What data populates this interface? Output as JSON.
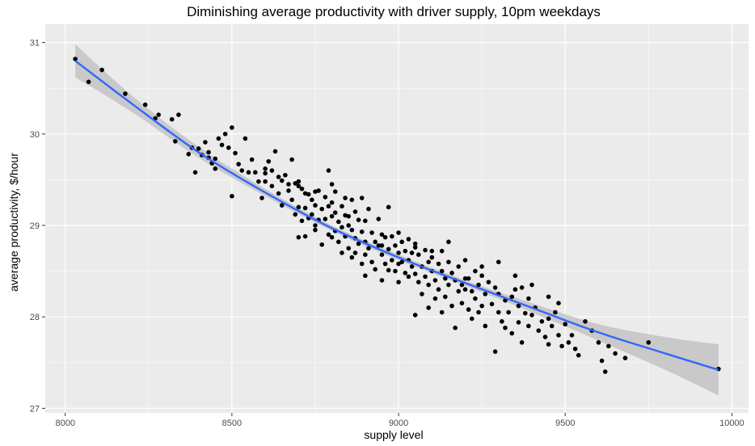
{
  "chart_data": {
    "type": "scatter",
    "title": "Diminishing average productivity with driver supply, 10pm weekdays",
    "xlabel": "supply level",
    "ylabel": "average productivity, $/hour",
    "xlim": [
      7940,
      10050
    ],
    "ylim": [
      26.95,
      31.2
    ],
    "xticks": [
      8000,
      8500,
      9000,
      9500,
      10000
    ],
    "yticks": [
      27,
      28,
      29,
      30,
      31
    ],
    "grid": true,
    "colors": {
      "panel": "#ebebeb",
      "grid_major": "#ffffff",
      "point": "#000000",
      "fit_line": "#3366ff",
      "confidence_band": "#bdbdbd"
    },
    "trend": {
      "method": "smooth",
      "x": [
        8030,
        8200,
        8400,
        8600,
        8800,
        9000,
        9200,
        9400,
        9600,
        9800,
        9960
      ],
      "y": [
        30.8,
        30.33,
        29.8,
        29.36,
        28.97,
        28.65,
        28.37,
        28.1,
        27.83,
        27.6,
        27.42
      ],
      "lower": [
        30.62,
        30.24,
        29.74,
        29.32,
        28.94,
        28.62,
        28.34,
        28.05,
        27.74,
        27.42,
        27.14
      ],
      "upper": [
        30.98,
        30.42,
        29.86,
        29.4,
        29.0,
        28.68,
        28.4,
        28.15,
        27.92,
        27.78,
        27.7
      ]
    },
    "points": [
      [
        8030,
        30.82
      ],
      [
        8070,
        30.57
      ],
      [
        8110,
        30.7
      ],
      [
        8180,
        30.44
      ],
      [
        8240,
        30.32
      ],
      [
        8270,
        30.17
      ],
      [
        8280,
        30.21
      ],
      [
        8320,
        30.16
      ],
      [
        8340,
        30.21
      ],
      [
        8330,
        29.92
      ],
      [
        8370,
        29.78
      ],
      [
        8380,
        29.85
      ],
      [
        8400,
        29.84
      ],
      [
        8390,
        29.58
      ],
      [
        8410,
        29.77
      ],
      [
        8420,
        29.91
      ],
      [
        8430,
        29.8
      ],
      [
        8430,
        29.74
      ],
      [
        8440,
        29.68
      ],
      [
        8450,
        29.62
      ],
      [
        8450,
        29.73
      ],
      [
        8460,
        29.95
      ],
      [
        8470,
        29.88
      ],
      [
        8480,
        30.0
      ],
      [
        8490,
        29.85
      ],
      [
        8500,
        30.07
      ],
      [
        8510,
        29.79
      ],
      [
        8520,
        29.67
      ],
      [
        8530,
        29.6
      ],
      [
        8540,
        29.95
      ],
      [
        8550,
        29.58
      ],
      [
        8500,
        29.32
      ],
      [
        8560,
        29.72
      ],
      [
        8570,
        29.58
      ],
      [
        8580,
        29.48
      ],
      [
        8590,
        29.3
      ],
      [
        8600,
        29.57
      ],
      [
        8600,
        29.48
      ],
      [
        8610,
        29.7
      ],
      [
        8620,
        29.43
      ],
      [
        8620,
        29.6
      ],
      [
        8630,
        29.81
      ],
      [
        8640,
        29.53
      ],
      [
        8640,
        29.35
      ],
      [
        8650,
        29.49
      ],
      [
        8650,
        29.22
      ],
      [
        8660,
        29.55
      ],
      [
        8670,
        29.38
      ],
      [
        8670,
        29.45
      ],
      [
        8680,
        29.72
      ],
      [
        8680,
        29.28
      ],
      [
        8690,
        29.46
      ],
      [
        8690,
        29.12
      ],
      [
        8700,
        29.43
      ],
      [
        8700,
        29.2
      ],
      [
        8700,
        28.87
      ],
      [
        8710,
        29.4
      ],
      [
        8710,
        29.05
      ],
      [
        8720,
        29.35
      ],
      [
        8720,
        29.19
      ],
      [
        8720,
        28.88
      ],
      [
        8730,
        29.34
      ],
      [
        8730,
        29.08
      ],
      [
        8740,
        29.28
      ],
      [
        8740,
        29.12
      ],
      [
        8750,
        29.37
      ],
      [
        8750,
        29.22
      ],
      [
        8750,
        28.95
      ],
      [
        8760,
        29.38
      ],
      [
        8760,
        29.06
      ],
      [
        8770,
        29.18
      ],
      [
        8770,
        28.79
      ],
      [
        8780,
        29.31
      ],
      [
        8780,
        29.07
      ],
      [
        8790,
        29.6
      ],
      [
        8790,
        29.21
      ],
      [
        8790,
        28.9
      ],
      [
        8800,
        29.25
      ],
      [
        8800,
        29.1
      ],
      [
        8800,
        28.87
      ],
      [
        8810,
        29.37
      ],
      [
        8810,
        29.14
      ],
      [
        8810,
        28.94
      ],
      [
        8820,
        29.04
      ],
      [
        8820,
        28.82
      ],
      [
        8830,
        29.21
      ],
      [
        8830,
        28.98
      ],
      [
        8830,
        28.7
      ],
      [
        8840,
        29.11
      ],
      [
        8840,
        28.88
      ],
      [
        8840,
        29.3
      ],
      [
        8850,
        29.0
      ],
      [
        8850,
        28.75
      ],
      [
        8860,
        29.28
      ],
      [
        8860,
        28.95
      ],
      [
        8860,
        28.65
      ],
      [
        8870,
        29.15
      ],
      [
        8870,
        28.86
      ],
      [
        8870,
        28.7
      ],
      [
        8880,
        29.06
      ],
      [
        8880,
        28.8
      ],
      [
        8890,
        29.3
      ],
      [
        8890,
        28.93
      ],
      [
        8890,
        28.58
      ],
      [
        8900,
        29.05
      ],
      [
        8900,
        28.82
      ],
      [
        8900,
        28.68
      ],
      [
        8910,
        29.18
      ],
      [
        8910,
        28.75
      ],
      [
        8920,
        28.92
      ],
      [
        8920,
        28.6
      ],
      [
        8930,
        28.82
      ],
      [
        8930,
        28.52
      ],
      [
        8940,
        29.07
      ],
      [
        8940,
        28.78
      ],
      [
        8950,
        28.9
      ],
      [
        8950,
        28.68
      ],
      [
        8950,
        28.4
      ],
      [
        8960,
        28.87
      ],
      [
        8960,
        28.58
      ],
      [
        8970,
        29.2
      ],
      [
        8970,
        28.74
      ],
      [
        8970,
        28.51
      ],
      [
        8980,
        28.88
      ],
      [
        8980,
        28.62
      ],
      [
        8990,
        28.78
      ],
      [
        8990,
        28.5
      ],
      [
        9000,
        28.92
      ],
      [
        9000,
        28.7
      ],
      [
        9000,
        28.58
      ],
      [
        9000,
        28.38
      ],
      [
        9010,
        28.82
      ],
      [
        9010,
        28.6
      ],
      [
        9020,
        28.72
      ],
      [
        9020,
        28.48
      ],
      [
        9030,
        28.85
      ],
      [
        9030,
        28.62
      ],
      [
        9030,
        28.44
      ],
      [
        9040,
        28.7
      ],
      [
        9040,
        28.55
      ],
      [
        9050,
        28.76
      ],
      [
        9050,
        28.47
      ],
      [
        9050,
        28.02
      ],
      [
        9060,
        28.68
      ],
      [
        9060,
        28.38
      ],
      [
        9070,
        28.55
      ],
      [
        9070,
        28.25
      ],
      [
        9080,
        28.73
      ],
      [
        9080,
        28.44
      ],
      [
        9090,
        28.6
      ],
      [
        9090,
        28.35
      ],
      [
        9090,
        28.1
      ],
      [
        9100,
        28.65
      ],
      [
        9100,
        28.5
      ],
      [
        9110,
        28.4
      ],
      [
        9110,
        28.2
      ],
      [
        9120,
        28.58
      ],
      [
        9120,
        28.3
      ],
      [
        9130,
        28.72
      ],
      [
        9130,
        28.5
      ],
      [
        9130,
        28.05
      ],
      [
        9140,
        28.42
      ],
      [
        9140,
        28.22
      ],
      [
        9150,
        28.6
      ],
      [
        9150,
        28.35
      ],
      [
        9160,
        28.48
      ],
      [
        9160,
        28.12
      ],
      [
        9170,
        28.4
      ],
      [
        9170,
        27.88
      ],
      [
        9180,
        28.55
      ],
      [
        9180,
        28.28
      ],
      [
        9190,
        28.35
      ],
      [
        9190,
        28.15
      ],
      [
        9200,
        28.62
      ],
      [
        9200,
        28.3
      ],
      [
        9210,
        28.42
      ],
      [
        9210,
        28.08
      ],
      [
        9220,
        28.28
      ],
      [
        9220,
        27.98
      ],
      [
        9230,
        28.5
      ],
      [
        9230,
        28.2
      ],
      [
        9240,
        28.35
      ],
      [
        9240,
        28.05
      ],
      [
        9250,
        28.45
      ],
      [
        9250,
        28.12
      ],
      [
        9260,
        28.25
      ],
      [
        9260,
        27.9
      ],
      [
        9270,
        28.38
      ],
      [
        9280,
        28.14
      ],
      [
        9290,
        28.32
      ],
      [
        9290,
        27.62
      ],
      [
        9300,
        28.05
      ],
      [
        9300,
        28.25
      ],
      [
        9310,
        27.95
      ],
      [
        9320,
        28.18
      ],
      [
        9320,
        27.88
      ],
      [
        9330,
        28.05
      ],
      [
        9340,
        28.22
      ],
      [
        9340,
        27.82
      ],
      [
        9350,
        28.45
      ],
      [
        9360,
        28.12
      ],
      [
        9360,
        27.94
      ],
      [
        9370,
        28.32
      ],
      [
        9370,
        27.72
      ],
      [
        9380,
        28.04
      ],
      [
        9390,
        28.2
      ],
      [
        9390,
        27.9
      ],
      [
        9400,
        28.02
      ],
      [
        9410,
        28.1
      ],
      [
        9420,
        27.85
      ],
      [
        9430,
        27.95
      ],
      [
        9440,
        27.78
      ],
      [
        9450,
        27.98
      ],
      [
        9450,
        27.7
      ],
      [
        9460,
        27.9
      ],
      [
        9470,
        28.05
      ],
      [
        9480,
        27.8
      ],
      [
        9490,
        27.68
      ],
      [
        9500,
        27.92
      ],
      [
        9510,
        27.72
      ],
      [
        9520,
        27.8
      ],
      [
        9530,
        27.65
      ],
      [
        9540,
        27.58
      ],
      [
        9560,
        27.95
      ],
      [
        9580,
        27.85
      ],
      [
        9600,
        27.72
      ],
      [
        9610,
        27.52
      ],
      [
        9620,
        27.4
      ],
      [
        9630,
        27.68
      ],
      [
        9650,
        27.6
      ],
      [
        9680,
        27.55
      ],
      [
        9750,
        27.72
      ],
      [
        9960,
        27.43
      ],
      [
        8600,
        29.62
      ],
      [
        8750,
        29.0
      ],
      [
        8900,
        28.45
      ],
      [
        9050,
        28.8
      ],
      [
        9200,
        28.42
      ],
      [
        9350,
        28.3
      ],
      [
        9450,
        28.22
      ],
      [
        8850,
        29.1
      ],
      [
        8950,
        28.78
      ],
      [
        9100,
        28.72
      ],
      [
        9250,
        28.55
      ],
      [
        9400,
        28.35
      ],
      [
        8700,
        29.48
      ],
      [
        8800,
        29.45
      ],
      [
        9150,
        28.82
      ],
      [
        9300,
        28.6
      ],
      [
        9480,
        28.15
      ]
    ]
  }
}
